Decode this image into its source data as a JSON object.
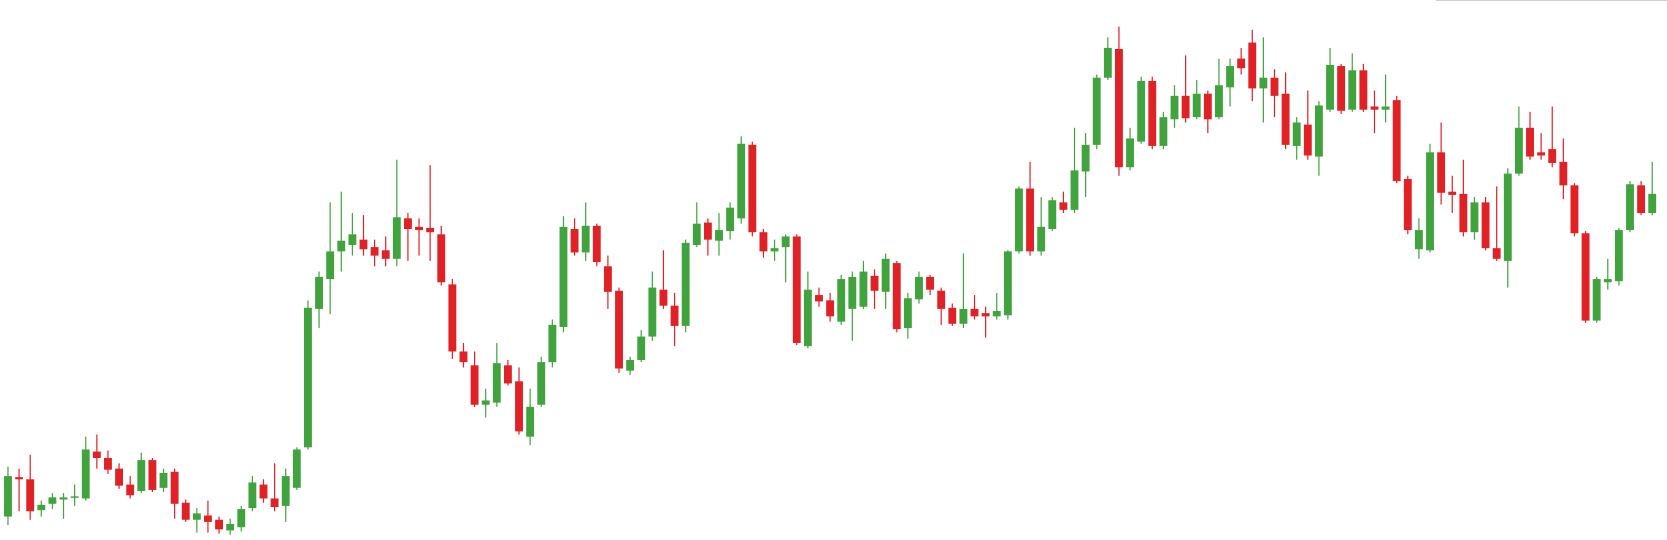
{
  "chart_data": {
    "type": "candlestick",
    "up_color": "#40a33d",
    "down_color": "#e02126",
    "ylim": [
      0,
      507
    ],
    "open": [
      22,
      59,
      57,
      28,
      34,
      38,
      40,
      39,
      83,
      77,
      67,
      52,
      46,
      75,
      49,
      64,
      35,
      19,
      23,
      19,
      9,
      12,
      30,
      52,
      39,
      32,
      49,
      87,
      217,
      245,
      271,
      277,
      282,
      275,
      272,
      264,
      302,
      294,
      293,
      287,
      240,
      177,
      164,
      127,
      129,
      164,
      149,
      97,
      127,
      167,
      200,
      292,
      270,
      295,
      257,
      234,
      159,
      169,
      191,
      235,
      220,
      201,
      277,
      298,
      281,
      290,
      302,
      371,
      289,
      271,
      275,
      285,
      182,
      230,
      225,
      205,
      217,
      219,
      248,
      233,
      260,
      199,
      226,
      247,
      234,
      218,
      203,
      217,
      213,
      210,
      211,
      271,
      330,
      271,
      292,
      317,
      310,
      346,
      371,
      434,
      461,
      350,
      374,
      431,
      370,
      395,
      417,
      397,
      419,
      397,
      425,
      452,
      467,
      424,
      434,
      419,
      370,
      390,
      360,
      404,
      445,
      404,
      441,
      407,
      404,
      413,
      339,
      273,
      272,
      364,
      327,
      325,
      289,
      317,
      274,
      262,
      344,
      387,
      364,
      367,
      355,
      333,
      288,
      206,
      242,
      243,
      291,
      333,
      307
    ],
    "high": [
      69,
      67,
      80,
      37,
      44,
      44,
      52,
      97,
      99,
      84,
      72,
      60,
      82,
      77,
      67,
      67,
      38,
      30,
      37,
      22,
      20,
      32,
      60,
      57,
      72,
      67,
      87,
      225,
      252,
      317,
      327,
      307,
      305,
      282,
      285,
      357,
      307,
      302,
      352,
      295,
      245,
      185,
      177,
      142,
      185,
      169,
      162,
      142,
      172,
      207,
      304,
      302,
      317,
      297,
      267,
      237,
      172,
      197,
      252,
      272,
      232,
      282,
      317,
      302,
      307,
      317,
      379,
      374,
      292,
      282,
      287,
      287,
      252,
      237,
      232,
      249,
      252,
      262,
      254,
      269,
      262,
      232,
      252,
      249,
      237,
      222,
      269,
      230,
      219,
      232,
      272,
      332,
      355,
      322,
      322,
      327,
      387,
      382,
      437,
      472,
      482,
      387,
      435,
      435,
      402,
      427,
      455,
      432,
      422,
      452,
      452,
      462,
      479,
      472,
      442,
      439,
      397,
      422,
      412,
      462,
      447,
      457,
      447,
      422,
      437,
      417,
      342,
      302,
      372,
      392,
      342,
      357,
      322,
      322,
      332,
      349,
      407,
      402,
      382,
      407,
      377,
      335,
      290,
      247,
      264,
      293,
      337,
      337,
      355
    ],
    "low": [
      14,
      27,
      19,
      22,
      29,
      20,
      32,
      37,
      67,
      62,
      48,
      39,
      44,
      45,
      45,
      20,
      17,
      7,
      7,
      6,
      5,
      8,
      27,
      35,
      27,
      17,
      47,
      85,
      199,
      212,
      252,
      267,
      267,
      257,
      257,
      257,
      262,
      267,
      262,
      239,
      170,
      162,
      125,
      115,
      125,
      145,
      99,
      89,
      125,
      162,
      195,
      267,
      262,
      257,
      217,
      157,
      155,
      167,
      187,
      217,
      182,
      195,
      275,
      267,
      267,
      282,
      297,
      285,
      265,
      262,
      242,
      183,
      180,
      219,
      205,
      202,
      187,
      217,
      217,
      217,
      195,
      189,
      222,
      230,
      202,
      201,
      199,
      207,
      190,
      207,
      207,
      269,
      267,
      267,
      290,
      307,
      307,
      322,
      367,
      432,
      342,
      347,
      372,
      367,
      367,
      387,
      392,
      395,
      382,
      395,
      407,
      437,
      412,
      392,
      397,
      367,
      357,
      357,
      342,
      402,
      400,
      402,
      402,
      382,
      392,
      335,
      287,
      264,
      270,
      315,
      307,
      285,
      282,
      272,
      262,
      237,
      342,
      357,
      357,
      350,
      320,
      285,
      204,
      204,
      235,
      239,
      289,
      305,
      305
    ],
    "close": [
      60,
      57,
      27,
      33,
      40,
      40,
      41,
      85,
      77,
      66,
      51,
      42,
      75,
      47,
      63,
      34,
      19,
      25,
      17,
      10,
      15,
      29,
      54,
      39,
      31,
      60,
      85,
      218,
      247,
      271,
      281,
      287,
      273,
      267,
      264,
      303,
      292,
      291,
      289,
      242,
      177,
      167,
      127,
      131,
      166,
      147,
      102,
      125,
      167,
      202,
      294,
      270,
      295,
      261,
      233,
      161,
      169,
      191,
      237,
      220,
      201,
      279,
      297,
      282,
      291,
      312,
      372,
      289,
      271,
      274,
      285,
      185,
      235,
      224,
      210,
      245,
      247,
      252,
      234,
      264,
      198,
      227,
      247,
      235,
      217,
      203,
      217,
      210,
      210,
      215,
      271,
      330,
      271,
      294,
      319,
      310,
      347,
      371,
      434,
      462,
      350,
      377,
      431,
      370,
      397,
      417,
      396,
      419,
      395,
      427,
      445,
      443,
      424,
      434,
      417,
      371,
      392,
      361,
      408,
      446,
      403,
      441,
      404,
      404,
      407,
      337,
      291,
      291,
      364,
      326,
      324,
      289,
      317,
      274,
      264,
      344,
      387,
      360,
      361,
      354,
      333,
      288,
      206,
      245,
      245,
      291,
      334,
      307,
      325
    ]
  }
}
